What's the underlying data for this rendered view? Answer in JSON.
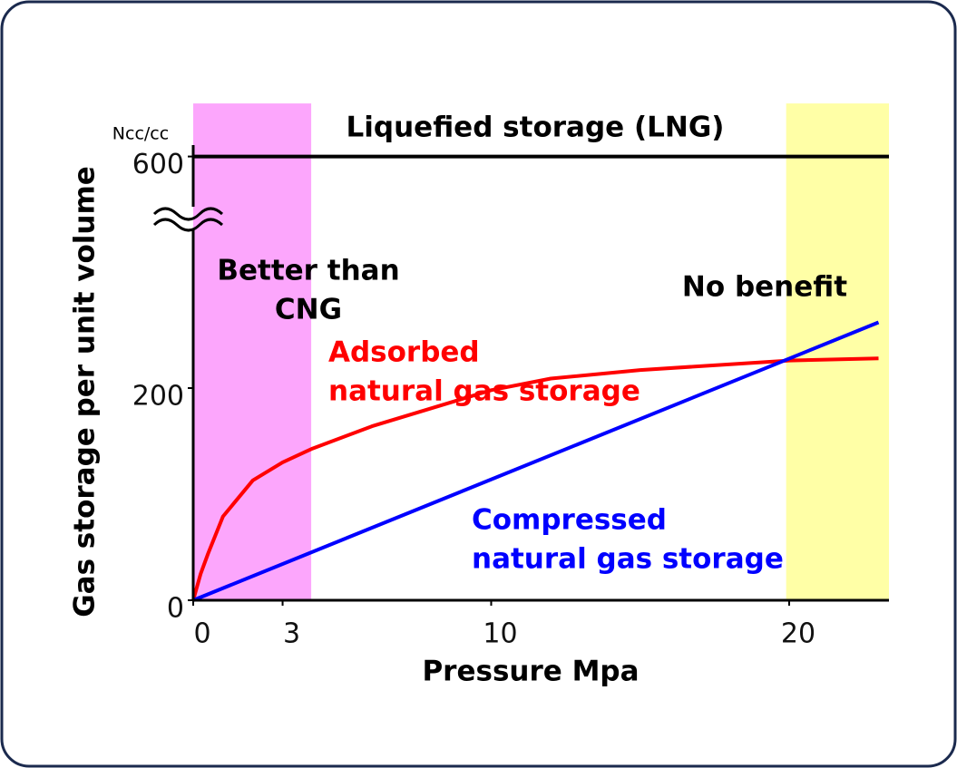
{
  "chart_data": {
    "type": "line",
    "x_label": "Pressure  Mpa",
    "y_label": "Gas storage per unit volume",
    "y_unit": "Ncc/cc",
    "xlim": [
      0,
      23.35
    ],
    "xticks": [
      0,
      3,
      10,
      20
    ],
    "ylim": [
      0,
      650
    ],
    "y_break": [
      300,
      580
    ],
    "yticks": [
      0,
      200,
      600
    ],
    "shaded_regions": [
      {
        "xrange": [
          0,
          3.96
        ],
        "color": "#fca6fc"
      },
      {
        "xrange": [
          19.9,
          23.35
        ],
        "color": "#ffffa6"
      }
    ],
    "series": [
      {
        "name": "Liquefied storage (LNG)",
        "color": "#000000",
        "x": [
          0,
          23.35
        ],
        "values": [
          600,
          600
        ]
      },
      {
        "color": "#ff0000",
        "x": [
          0,
          0.25,
          0.5,
          1,
          2,
          3,
          4,
          6,
          8,
          10,
          12,
          15,
          20,
          23
        ],
        "values": [
          0,
          25,
          44,
          79,
          113,
          130,
          143,
          164,
          181,
          198,
          209,
          217,
          226,
          228
        ]
      },
      {
        "color": "#0000ff",
        "x": [
          0,
          23
        ],
        "values": [
          0,
          262
        ]
      }
    ],
    "annotations": [
      {
        "lines": [
          "Better than",
          "CNG"
        ],
        "color": "#000000"
      },
      {
        "lines": [
          "No benefit"
        ],
        "color": "#000000"
      },
      {
        "lines": [
          "Adsorbed",
          "natural gas storage"
        ],
        "color": "#ff0000"
      },
      {
        "lines": [
          "Compressed",
          "natural gas storage"
        ],
        "color": "#0000ff"
      }
    ]
  }
}
